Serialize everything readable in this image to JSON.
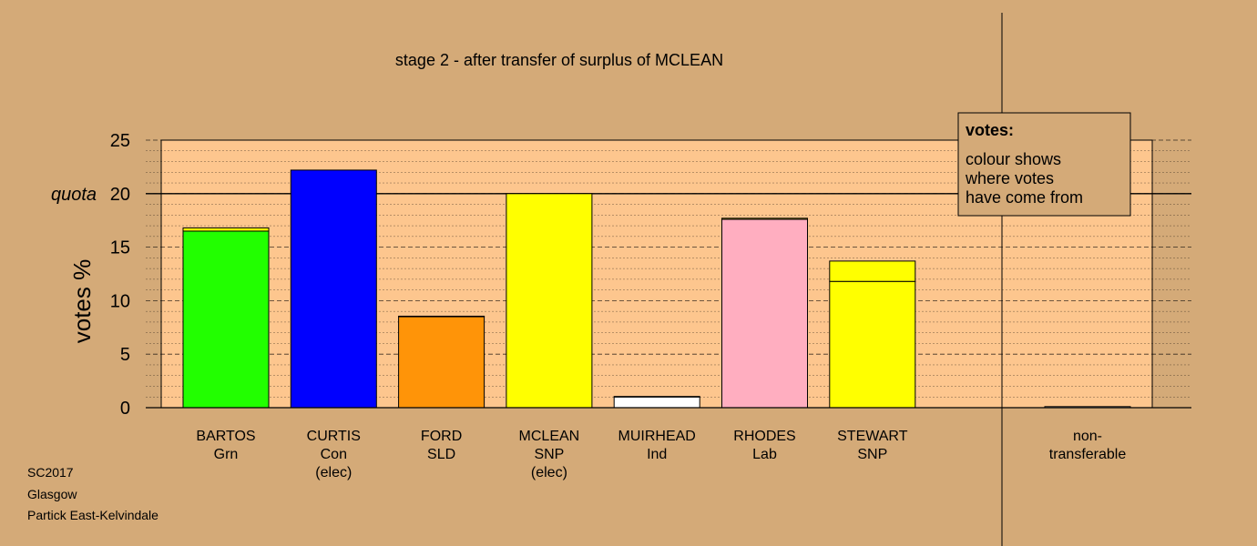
{
  "chart_data": {
    "type": "bar",
    "title": "stage 2 - after transfer of surplus of MCLEAN",
    "ylabel": "votes %",
    "ylim": [
      0,
      25
    ],
    "yticks": [
      0,
      5,
      10,
      15,
      20,
      25
    ],
    "quota": {
      "label": "quota",
      "value": 20
    },
    "grid": true,
    "colors": {
      "background": "#d4aa78",
      "plot_area": "#fdc68e",
      "Grn": "#22ff00",
      "Con": "#0000ff",
      "SLD": "#ff9408",
      "SNP": "#ffff00",
      "Ind": "#ffffff",
      "Lab": "#ffaec0",
      "nontransferable": "#ffffff"
    },
    "candidates": [
      {
        "name": "BARTOS",
        "party": "Grn",
        "status": "",
        "segments": [
          {
            "from": "Grn",
            "value": 16.5
          },
          {
            "from": "SNP",
            "value": 0.3
          }
        ]
      },
      {
        "name": "CURTIS",
        "party": "Con",
        "status": "(elec)",
        "segments": [
          {
            "from": "Con",
            "value": 22.2
          }
        ]
      },
      {
        "name": "FORD",
        "party": "SLD",
        "status": "",
        "segments": [
          {
            "from": "SLD",
            "value": 8.5
          },
          {
            "from": "SNP",
            "value": 0.05
          }
        ]
      },
      {
        "name": "MCLEAN",
        "party": "SNP",
        "status": "(elec)",
        "segments": [
          {
            "from": "SNP",
            "value": 20.0
          }
        ]
      },
      {
        "name": "MUIRHEAD",
        "party": "Ind",
        "status": "",
        "segments": [
          {
            "from": "Ind",
            "value": 1.0
          },
          {
            "from": "SNP",
            "value": 0.05
          }
        ]
      },
      {
        "name": "RHODES",
        "party": "Lab",
        "status": "",
        "segments": [
          {
            "from": "Lab",
            "value": 17.6
          },
          {
            "from": "SNP",
            "value": 0.1
          }
        ]
      },
      {
        "name": "STEWART",
        "party": "SNP",
        "status": "",
        "segments": [
          {
            "from": "SNP",
            "value": 11.8
          },
          {
            "from": "SNP",
            "value": 1.9
          }
        ]
      }
    ],
    "nontransferable": {
      "label_line1": "non-",
      "label_line2": "transferable",
      "value": 0.1
    },
    "legend": {
      "title": "votes:",
      "lines": [
        "colour shows",
        "where votes",
        "have come from"
      ],
      "placement": "top-right"
    }
  },
  "footer": {
    "line1": "SC2017",
    "line2": "Glasgow",
    "line3": "Partick East-Kelvindale"
  }
}
